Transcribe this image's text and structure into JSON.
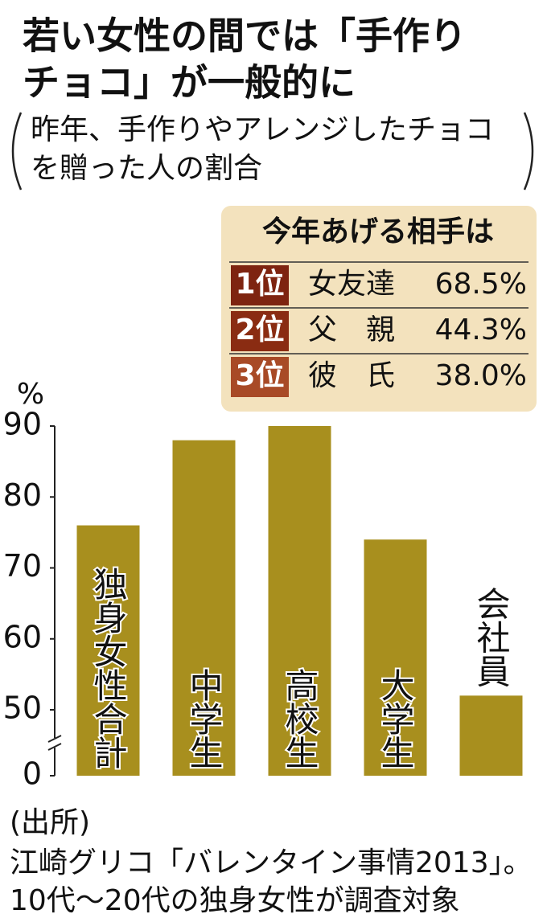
{
  "title": [
    "若い女性の間では「手作り",
    "チョコ」が一般的に"
  ],
  "subtitle": [
    "昨年、手作りやアレンジしたチョコ",
    "を贈った人の割合"
  ],
  "ranking": {
    "title": "今年あげる相手は",
    "rows": [
      {
        "rank": "1位",
        "name": "女友達",
        "value": "68.5%"
      },
      {
        "rank": "2位",
        "name": "父　親",
        "value": "44.3%"
      },
      {
        "rank": "3位",
        "name": "彼　氏",
        "value": "38.0%"
      }
    ]
  },
  "chart_data": {
    "type": "bar",
    "y_label": "%",
    "categories": [
      "独身女性合計",
      "中学生",
      "高校生",
      "大学生",
      "会社員"
    ],
    "values": [
      76,
      88,
      90,
      74,
      52
    ],
    "color": "#a88f1e",
    "ylim": [
      0,
      90
    ],
    "yticks": [
      0,
      50,
      60,
      70,
      80,
      90
    ],
    "axis_break": true
  },
  "source": [
    "(出所)",
    "江崎グリコ「バレンタイン事情2013」。",
    "10代～20代の独身女性が調査対象"
  ]
}
